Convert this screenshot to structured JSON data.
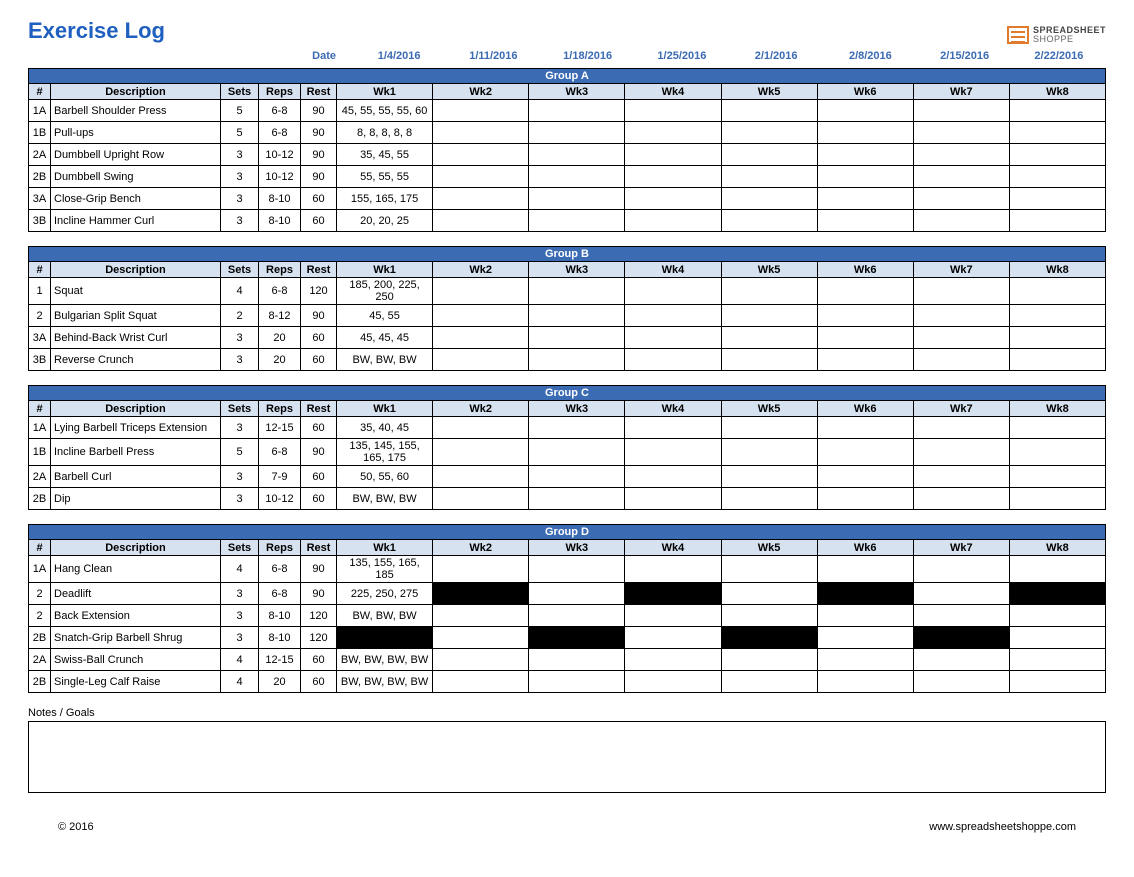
{
  "title": "Exercise Log",
  "logo": {
    "top": "SPREADSHEET",
    "bottom": "SHOPPE"
  },
  "date_label": "Date",
  "dates": [
    "1/4/2016",
    "1/11/2016",
    "1/18/2016",
    "1/25/2016",
    "2/1/2016",
    "2/8/2016",
    "2/15/2016",
    "2/22/2016"
  ],
  "columns": [
    "#",
    "Description",
    "Sets",
    "Reps",
    "Rest",
    "Wk1",
    "Wk2",
    "Wk3",
    "Wk4",
    "Wk5",
    "Wk6",
    "Wk7",
    "Wk8"
  ],
  "groups": [
    {
      "name": "Group A",
      "rows": [
        {
          "num": "1A",
          "desc": "Barbell Shoulder Press",
          "sets": "5",
          "reps": "6-8",
          "rest": "90",
          "wk": [
            "45, 55, 55, 55, 60",
            "",
            "",
            "",
            "",
            "",
            "",
            ""
          ],
          "blackout": []
        },
        {
          "num": "1B",
          "desc": "Pull-ups",
          "sets": "5",
          "reps": "6-8",
          "rest": "90",
          "wk": [
            "8, 8, 8, 8, 8",
            "",
            "",
            "",
            "",
            "",
            "",
            ""
          ],
          "blackout": []
        },
        {
          "num": "2A",
          "desc": "Dumbbell Upright Row",
          "sets": "3",
          "reps": "10-12",
          "rest": "90",
          "wk": [
            "35, 45, 55",
            "",
            "",
            "",
            "",
            "",
            "",
            ""
          ],
          "blackout": []
        },
        {
          "num": "2B",
          "desc": "Dumbbell Swing",
          "sets": "3",
          "reps": "10-12",
          "rest": "90",
          "wk": [
            "55, 55, 55",
            "",
            "",
            "",
            "",
            "",
            "",
            ""
          ],
          "blackout": []
        },
        {
          "num": "3A",
          "desc": "Close-Grip Bench",
          "sets": "3",
          "reps": "8-10",
          "rest": "60",
          "wk": [
            "155, 165, 175",
            "",
            "",
            "",
            "",
            "",
            "",
            ""
          ],
          "blackout": []
        },
        {
          "num": "3B",
          "desc": "Incline Hammer Curl",
          "sets": "3",
          "reps": "8-10",
          "rest": "60",
          "wk": [
            "20, 20, 25",
            "",
            "",
            "",
            "",
            "",
            "",
            ""
          ],
          "blackout": []
        }
      ]
    },
    {
      "name": "Group B",
      "rows": [
        {
          "num": "1",
          "desc": "Squat",
          "sets": "4",
          "reps": "6-8",
          "rest": "120",
          "wk": [
            "185, 200, 225, 250",
            "",
            "",
            "",
            "",
            "",
            "",
            ""
          ],
          "blackout": []
        },
        {
          "num": "2",
          "desc": "Bulgarian Split Squat",
          "sets": "2",
          "reps": "8-12",
          "rest": "90",
          "wk": [
            "45, 55",
            "",
            "",
            "",
            "",
            "",
            "",
            ""
          ],
          "blackout": []
        },
        {
          "num": "3A",
          "desc": "Behind-Back Wrist Curl",
          "sets": "3",
          "reps": "20",
          "rest": "60",
          "wk": [
            "45, 45, 45",
            "",
            "",
            "",
            "",
            "",
            "",
            ""
          ],
          "blackout": []
        },
        {
          "num": "3B",
          "desc": "Reverse Crunch",
          "sets": "3",
          "reps": "20",
          "rest": "60",
          "wk": [
            "BW, BW, BW",
            "",
            "",
            "",
            "",
            "",
            "",
            ""
          ],
          "blackout": []
        }
      ]
    },
    {
      "name": "Group C",
      "rows": [
        {
          "num": "1A",
          "desc": "Lying Barbell Triceps Extension",
          "sets": "3",
          "reps": "12-15",
          "rest": "60",
          "wk": [
            "35, 40, 45",
            "",
            "",
            "",
            "",
            "",
            "",
            ""
          ],
          "blackout": []
        },
        {
          "num": "1B",
          "desc": "Incline Barbell Press",
          "sets": "5",
          "reps": "6-8",
          "rest": "90",
          "wk": [
            "135, 145, 155, 165, 175",
            "",
            "",
            "",
            "",
            "",
            "",
            ""
          ],
          "blackout": []
        },
        {
          "num": "2A",
          "desc": "Barbell Curl",
          "sets": "3",
          "reps": "7-9",
          "rest": "60",
          "wk": [
            "50, 55, 60",
            "",
            "",
            "",
            "",
            "",
            "",
            ""
          ],
          "blackout": []
        },
        {
          "num": "2B",
          "desc": "Dip",
          "sets": "3",
          "reps": "10-12",
          "rest": "60",
          "wk": [
            "BW, BW, BW",
            "",
            "",
            "",
            "",
            "",
            "",
            ""
          ],
          "blackout": []
        }
      ]
    },
    {
      "name": "Group D",
      "rows": [
        {
          "num": "1A",
          "desc": "Hang Clean",
          "sets": "4",
          "reps": "6-8",
          "rest": "90",
          "wk": [
            "135, 155, 165, 185",
            "",
            "",
            "",
            "",
            "",
            "",
            ""
          ],
          "blackout": []
        },
        {
          "num": "2",
          "desc": "Deadlift",
          "sets": "3",
          "reps": "6-8",
          "rest": "90",
          "wk": [
            "225, 250, 275",
            "",
            "",
            "",
            "",
            "",
            "",
            ""
          ],
          "blackout": [
            1,
            3,
            5,
            7
          ]
        },
        {
          "num": "2",
          "desc": "Back Extension",
          "sets": "3",
          "reps": "8-10",
          "rest": "120",
          "wk": [
            "BW, BW, BW",
            "",
            "",
            "",
            "",
            "",
            "",
            ""
          ],
          "blackout": []
        },
        {
          "num": "2B",
          "desc": "Snatch-Grip Barbell Shrug",
          "sets": "3",
          "reps": "8-10",
          "rest": "120",
          "wk": [
            "",
            "",
            "",
            "",
            "",
            "",
            "",
            ""
          ],
          "blackout": [
            0,
            2,
            4,
            6
          ]
        },
        {
          "num": "2A",
          "desc": "Swiss-Ball Crunch",
          "sets": "4",
          "reps": "12-15",
          "rest": "60",
          "wk": [
            "BW, BW, BW, BW",
            "",
            "",
            "",
            "",
            "",
            "",
            ""
          ],
          "blackout": []
        },
        {
          "num": "2B",
          "desc": "Single-Leg Calf Raise",
          "sets": "4",
          "reps": "20",
          "rest": "60",
          "wk": [
            "BW, BW, BW, BW",
            "",
            "",
            "",
            "",
            "",
            "",
            ""
          ],
          "blackout": []
        }
      ]
    }
  ],
  "notes_label": "Notes / Goals",
  "copyright": "© 2016",
  "website": "www.spreadsheetshoppe.com",
  "colors": {
    "title_blue": "#1f5fbf",
    "header_blue": "#3b6bb3",
    "cell_header_lightblue": "#d7e2f0",
    "border": "#000000",
    "logo_orange": "#e07b2e"
  }
}
